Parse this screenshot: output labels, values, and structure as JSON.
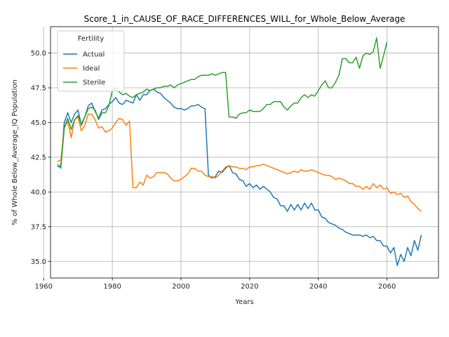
{
  "chart_data": {
    "type": "line",
    "title": "Score_1_in_CAUSE_OF_RACE_DIFFERENCES_WILL_for_Whole_Below_Average",
    "xlabel": "Years",
    "ylabel": "% of Whole Below_Average_IQ Population",
    "xlim": [
      1962,
      2075
    ],
    "ylim": [
      33.8,
      51.9
    ],
    "xticks": [
      1960,
      1980,
      2000,
      2020,
      2040,
      2060
    ],
    "yticks": [
      35.0,
      37.5,
      40.0,
      42.5,
      45.0,
      47.5,
      50.0
    ],
    "ytick_labels": [
      "35.0",
      "37.5",
      "40.0",
      "42.5",
      "45.0",
      "47.5",
      "50.0"
    ],
    "grid": true,
    "legend": {
      "title": "Fertility",
      "placement": "upper-left"
    },
    "series": [
      {
        "name": "Actual",
        "color": "#1f77b4",
        "x": [
          1964,
          1965,
          1966,
          1967,
          1968,
          1969,
          1970,
          1971,
          1972,
          1973,
          1974,
          1975,
          1976,
          1977,
          1978,
          1979,
          1980,
          1981,
          1982,
          1983,
          1984,
          1985,
          1986,
          1987,
          1988,
          1989,
          1990,
          1991,
          1992,
          1993,
          1994,
          1995,
          1996,
          1997,
          1998,
          1999,
          2000,
          2001,
          2002,
          2003,
          2004,
          2005,
          2006,
          2007,
          2008,
          2009,
          2010,
          2011,
          2012,
          2013,
          2014,
          2015,
          2016,
          2017,
          2018,
          2019,
          2020,
          2021,
          2022,
          2023,
          2024,
          2025,
          2026,
          2027,
          2028,
          2029,
          2030,
          2031,
          2032,
          2033,
          2034,
          2035,
          2036,
          2037,
          2038,
          2039,
          2040,
          2041,
          2042,
          2043,
          2044,
          2045,
          2046,
          2047,
          2048,
          2049,
          2050,
          2051,
          2052,
          2053,
          2054,
          2055,
          2056,
          2057,
          2058,
          2059,
          2060,
          2061,
          2062,
          2063,
          2064,
          2065,
          2066,
          2067,
          2068,
          2069,
          2070
        ],
        "values": [
          41.8,
          41.9,
          45.0,
          45.7,
          45.0,
          45.6,
          45.9,
          44.8,
          45.4,
          46.2,
          46.4,
          45.8,
          45.3,
          45.9,
          46.0,
          46.3,
          46.5,
          46.8,
          46.4,
          46.3,
          46.6,
          46.5,
          46.4,
          47.0,
          46.6,
          47.0,
          47.0,
          47.3,
          47.4,
          47.2,
          47.1,
          46.8,
          46.6,
          46.4,
          46.1,
          46.0,
          46.0,
          45.9,
          46.0,
          46.2,
          46.2,
          46.3,
          46.1,
          46.0,
          41.2,
          41.0,
          41.1,
          41.5,
          41.4,
          41.7,
          41.9,
          41.4,
          41.3,
          40.9,
          40.8,
          40.4,
          40.6,
          40.3,
          40.5,
          40.2,
          40.4,
          40.2,
          40.0,
          39.6,
          39.5,
          39.0,
          39.0,
          38.6,
          39.1,
          38.7,
          39.1,
          38.7,
          39.2,
          38.8,
          39.2,
          38.7,
          38.7,
          38.2,
          38.1,
          37.8,
          37.7,
          37.6,
          37.4,
          37.3,
          37.1,
          37.0,
          36.9,
          36.9,
          36.9,
          36.8,
          36.9,
          36.7,
          36.8,
          36.5,
          36.5,
          36.1,
          36.1,
          35.6,
          36.0,
          34.7,
          35.5,
          35.0,
          36.0,
          35.4,
          36.5,
          35.8,
          36.9
        ]
      },
      {
        "name": "Ideal",
        "color": "#ff7f0e",
        "x": [
          1964,
          1965,
          1966,
          1967,
          1968,
          1969,
          1970,
          1971,
          1972,
          1973,
          1974,
          1975,
          1976,
          1977,
          1978,
          1979,
          1980,
          1981,
          1982,
          1983,
          1984,
          1985,
          1986,
          1987,
          1988,
          1989,
          1990,
          1991,
          1992,
          1993,
          1994,
          1995,
          1996,
          1997,
          1998,
          1999,
          2000,
          2001,
          2002,
          2003,
          2004,
          2005,
          2006,
          2007,
          2008,
          2009,
          2010,
          2011,
          2012,
          2013,
          2014,
          2015,
          2016,
          2017,
          2018,
          2019,
          2020,
          2021,
          2022,
          2023,
          2024,
          2025,
          2026,
          2027,
          2028,
          2029,
          2030,
          2031,
          2032,
          2033,
          2034,
          2035,
          2036,
          2037,
          2038,
          2039,
          2040,
          2041,
          2042,
          2043,
          2044,
          2045,
          2046,
          2047,
          2048,
          2049,
          2050,
          2051,
          2052,
          2053,
          2054,
          2055,
          2056,
          2057,
          2058,
          2059,
          2060,
          2061,
          2062,
          2063,
          2064,
          2065,
          2066,
          2067,
          2068,
          2069,
          2070
        ],
        "values": [
          42.2,
          42.3,
          44.6,
          45.1,
          43.9,
          45.2,
          45.4,
          44.4,
          44.8,
          45.6,
          45.6,
          45.2,
          44.6,
          44.7,
          44.3,
          44.4,
          44.6,
          45.0,
          45.3,
          45.2,
          44.8,
          45.1,
          40.3,
          40.3,
          40.7,
          40.5,
          41.2,
          41.0,
          41.1,
          41.4,
          41.4,
          41.4,
          41.3,
          41.0,
          40.8,
          40.8,
          40.9,
          41.1,
          41.3,
          41.7,
          41.7,
          41.5,
          41.5,
          41.2,
          41.1,
          41.1,
          41.0,
          41.2,
          41.5,
          41.8,
          41.9,
          41.8,
          41.8,
          41.7,
          41.7,
          41.6,
          41.8,
          41.8,
          41.9,
          41.9,
          42.0,
          41.9,
          41.8,
          41.7,
          41.6,
          41.5,
          41.4,
          41.3,
          41.4,
          41.5,
          41.4,
          41.6,
          41.5,
          41.5,
          41.6,
          41.5,
          41.4,
          41.3,
          41.2,
          41.2,
          41.1,
          40.9,
          41.0,
          40.9,
          40.8,
          40.6,
          40.6,
          40.4,
          40.4,
          40.2,
          40.4,
          40.2,
          40.6,
          40.3,
          40.5,
          40.2,
          40.3,
          39.9,
          40.0,
          39.8,
          39.9,
          39.6,
          39.7,
          39.3,
          39.1,
          38.8,
          38.6
        ]
      },
      {
        "name": "Sterile",
        "color": "#2ca02c",
        "x": [
          1964,
          1965,
          1966,
          1967,
          1968,
          1969,
          1970,
          1971,
          1972,
          1973,
          1974,
          1975,
          1976,
          1977,
          1978,
          1979,
          1980,
          1981,
          1982,
          1983,
          1984,
          1985,
          1986,
          1987,
          1988,
          1989,
          1990,
          1991,
          1992,
          1993,
          1994,
          1995,
          1996,
          1997,
          1998,
          1999,
          2000,
          2001,
          2002,
          2003,
          2004,
          2005,
          2006,
          2007,
          2008,
          2009,
          2010,
          2011,
          2012,
          2013,
          2014,
          2015,
          2016,
          2017,
          2018,
          2019,
          2020,
          2021,
          2022,
          2023,
          2024,
          2025,
          2026,
          2027,
          2028,
          2029,
          2030,
          2031,
          2032,
          2033,
          2034,
          2035,
          2036,
          2037,
          2038,
          2039,
          2040,
          2041,
          2042,
          2043,
          2044,
          2045,
          2046,
          2047,
          2048,
          2049,
          2050,
          2051,
          2052,
          2053,
          2054,
          2055,
          2056,
          2057,
          2058,
          2059,
          2060
        ],
        "values": [
          42.0,
          41.7,
          44.6,
          45.3,
          44.5,
          45.2,
          45.5,
          44.9,
          45.4,
          46.0,
          46.1,
          45.9,
          45.2,
          45.7,
          45.7,
          46.2,
          47.3,
          47.5,
          47.2,
          47.0,
          47.1,
          46.9,
          46.8,
          47.0,
          47.1,
          47.2,
          47.4,
          47.3,
          47.4,
          47.5,
          47.5,
          47.6,
          47.6,
          47.7,
          47.5,
          47.7,
          47.8,
          47.9,
          48.0,
          48.1,
          48.1,
          48.3,
          48.4,
          48.4,
          48.4,
          48.5,
          48.4,
          48.5,
          48.6,
          48.6,
          45.4,
          45.4,
          45.3,
          45.6,
          45.7,
          45.7,
          45.9,
          45.8,
          45.8,
          45.8,
          46.0,
          46.3,
          46.3,
          46.5,
          46.5,
          46.5,
          46.1,
          45.9,
          46.2,
          46.4,
          46.4,
          46.8,
          47.0,
          46.8,
          47.0,
          46.9,
          47.3,
          47.7,
          48.0,
          47.5,
          47.5,
          47.9,
          48.4,
          49.6,
          49.6,
          49.3,
          49.3,
          49.7,
          48.9,
          49.8,
          50.0,
          49.9,
          50.1,
          51.1,
          48.9,
          49.8,
          50.8
        ]
      }
    ]
  }
}
